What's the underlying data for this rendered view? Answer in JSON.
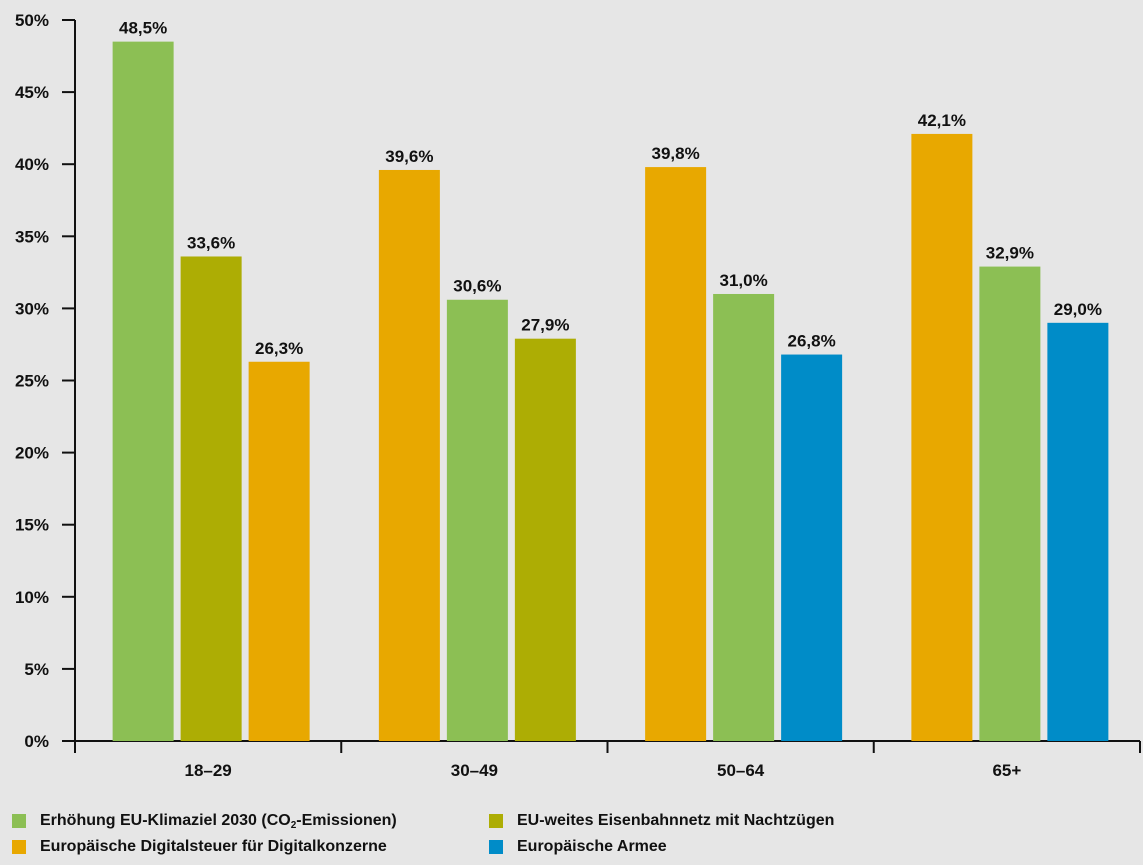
{
  "chart_data": {
    "type": "bar",
    "title": "",
    "xlabel": "",
    "ylabel": "",
    "ylim": [
      0,
      50
    ],
    "yticks": [
      "0%",
      "5%",
      "10%",
      "15%",
      "20%",
      "25%",
      "30%",
      "35%",
      "40%",
      "45%",
      "50%"
    ],
    "grid": false,
    "legend_position": "bottom",
    "groups": [
      {
        "category": "18–29",
        "bars": [
          {
            "series": "Erhöhung EU-Klimaziel 2030 (CO2-Emissionen)",
            "value": 48.5,
            "label": "48,5%"
          },
          {
            "series": "EU-weites Eisenbahnnetz mit Nachtzügen",
            "value": 33.6,
            "label": "33,6%"
          },
          {
            "series": "Europäische Digitalsteuer für Digitalkonzerne",
            "value": 26.3,
            "label": "26,3%"
          }
        ]
      },
      {
        "category": "30–49",
        "bars": [
          {
            "series": "Europäische Digitalsteuer für Digitalkonzerne",
            "value": 39.6,
            "label": "39,6%"
          },
          {
            "series": "Erhöhung EU-Klimaziel 2030 (CO2-Emissionen)",
            "value": 30.6,
            "label": "30,6%"
          },
          {
            "series": "EU-weites Eisenbahnnetz mit Nachtzügen",
            "value": 27.9,
            "label": "27,9%"
          }
        ]
      },
      {
        "category": "50–64",
        "bars": [
          {
            "series": "Europäische Digitalsteuer für Digitalkonzerne",
            "value": 39.8,
            "label": "39,8%"
          },
          {
            "series": "Erhöhung EU-Klimaziel 2030 (CO2-Emissionen)",
            "value": 31.0,
            "label": "31,0%"
          },
          {
            "series": "Europäische Armee",
            "value": 26.8,
            "label": "26,8%"
          }
        ]
      },
      {
        "category": "65+",
        "bars": [
          {
            "series": "Europäische Digitalsteuer für Digitalkonzerne",
            "value": 42.1,
            "label": "42,1%"
          },
          {
            "series": "Erhöhung EU-Klimaziel 2030 (CO2-Emissionen)",
            "value": 32.9,
            "label": "32,9%"
          },
          {
            "series": "Europäische Armee",
            "value": 29.0,
            "label": "29,0%"
          }
        ]
      }
    ],
    "legend": [
      {
        "name": "Erhöhung EU-Klimaziel 2030 (CO2-Emissionen)",
        "text_before": "Erhöhung EU-Klimaziel 2030 (CO",
        "subscript": "2",
        "text_after": "-Emissionen)",
        "color": "#8cbf54"
      },
      {
        "name": "EU-weites Eisenbahnnetz mit Nachtzügen",
        "text_before": "EU-weites Eisenbahnnetz mit Nachtzügen",
        "subscript": "",
        "text_after": "",
        "color": "#adad04"
      },
      {
        "name": "Europäische Digitalsteuer für Digitalkonzerne",
        "text_before": "Europäische Digitalsteuer für Digitalkonzerne",
        "subscript": "",
        "text_after": "",
        "color": "#e8a800"
      },
      {
        "name": "Europäische Armee",
        "text_before": "Europäische Armee",
        "subscript": "",
        "text_after": "",
        "color": "#008cc8"
      }
    ]
  },
  "colors": {
    "background": "#e6e6e6",
    "axis": "#111111"
  }
}
